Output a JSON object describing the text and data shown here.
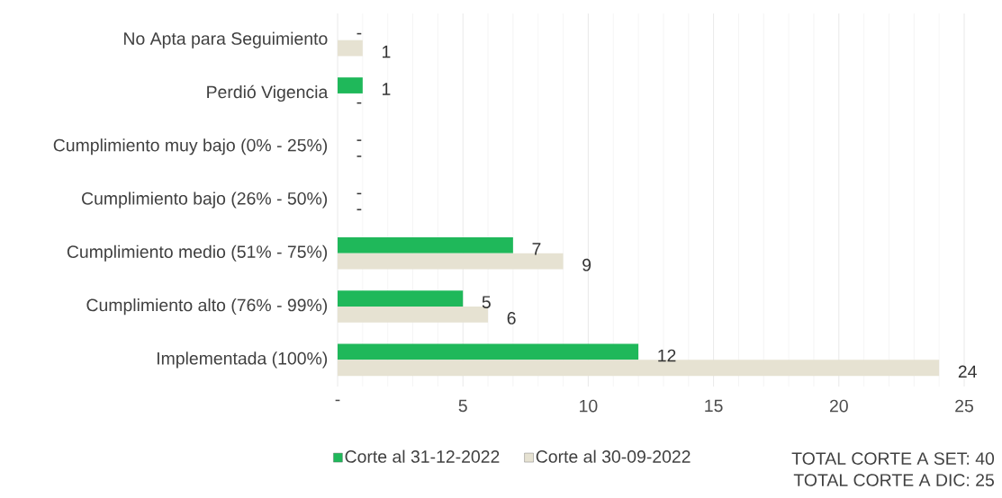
{
  "chart_data": {
    "type": "bar",
    "orientation": "horizontal",
    "categories": [
      "No Apta para Seguimiento",
      "Perdió Vigencia",
      "Cumplimiento muy bajo (0% - 25%)",
      "Cumplimiento bajo (26% - 50%)",
      "Cumplimiento medio (51% - 75%)",
      "Cumplimiento alto (76% - 99%)",
      "Implementada (100%)"
    ],
    "series": [
      {
        "name": "Corte al 31-12-2022",
        "color": "#1fb85a",
        "values": [
          0,
          1,
          0,
          0,
          7,
          5,
          12
        ],
        "value_labels": [
          "-",
          "1",
          "-",
          "-",
          "7",
          "5",
          "12"
        ]
      },
      {
        "name": "Corte al 30-09-2022",
        "color": "#e6e2d2",
        "values": [
          1,
          0,
          0,
          0,
          9,
          6,
          24
        ],
        "value_labels": [
          "1",
          "-",
          "-",
          "-",
          "9",
          "6",
          "24"
        ]
      }
    ],
    "xlim": [
      0,
      25
    ],
    "xticks": [
      {
        "value": 0,
        "label": "-"
      },
      5,
      10,
      15,
      20,
      25
    ],
    "grid": "x",
    "legend": "bottom",
    "annotations": [
      "TOTAL CORTE A SET:  40",
      "TOTAL CORTE A DIC:  25"
    ]
  }
}
